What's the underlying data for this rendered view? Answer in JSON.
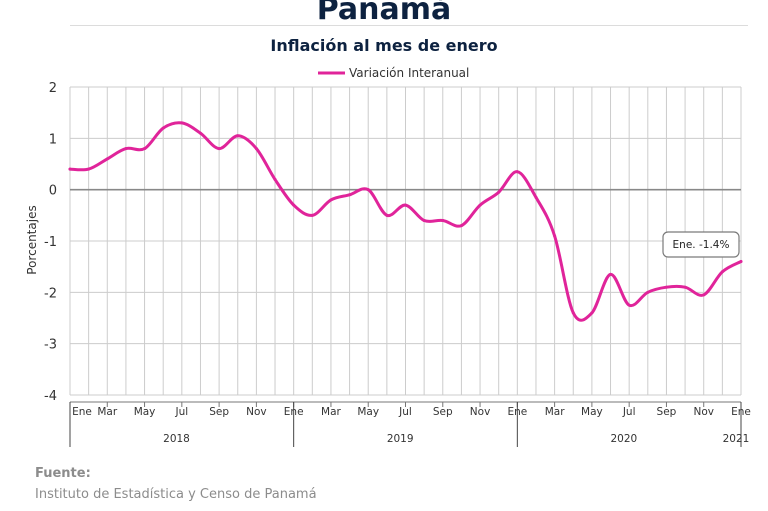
{
  "title": "Panamá",
  "subtitle": "Inflación al mes de enero",
  "source": {
    "heading": "Fuente:",
    "text": "Instituto de Estadística y Censo de Panamá"
  },
  "colors": {
    "series": "#e0249a",
    "grid": "#cccccc",
    "zero_line": "#888888",
    "text": "#333333",
    "title": "#0d2240"
  },
  "chart_data": {
    "type": "line",
    "title": "Inflación al mes de enero",
    "ylabel": "Porcentajes",
    "ylim": [
      -4,
      2
    ],
    "yticks": [
      2,
      1,
      0,
      -1,
      -2,
      -3,
      -4
    ],
    "grid": true,
    "legend_position": "top-center",
    "month_tick_labels": [
      "Ene",
      "Mar",
      "May",
      "Jul",
      "Sep",
      "Nov",
      "Ene",
      "Mar",
      "May",
      "Jul",
      "Sep",
      "Nov",
      "Ene",
      "Mar",
      "May",
      "Jul",
      "Sep",
      "Nov",
      "Ene"
    ],
    "year_labels": [
      "2018",
      "2019",
      "2020",
      "2021"
    ],
    "series": [
      {
        "name": "Variación Interanual",
        "x": [
          "2018-01",
          "2018-02",
          "2018-03",
          "2018-04",
          "2018-05",
          "2018-06",
          "2018-07",
          "2018-08",
          "2018-09",
          "2018-10",
          "2018-11",
          "2018-12",
          "2019-01",
          "2019-02",
          "2019-03",
          "2019-04",
          "2019-05",
          "2019-06",
          "2019-07",
          "2019-08",
          "2019-09",
          "2019-10",
          "2019-11",
          "2019-12",
          "2020-01",
          "2020-02",
          "2020-03",
          "2020-04",
          "2020-05",
          "2020-06",
          "2020-07",
          "2020-08",
          "2020-09",
          "2020-10",
          "2020-11",
          "2020-12",
          "2021-01"
        ],
        "values": [
          0.4,
          0.4,
          0.6,
          0.8,
          0.8,
          1.2,
          1.3,
          1.1,
          0.8,
          1.05,
          0.8,
          0.2,
          -0.3,
          -0.5,
          -0.2,
          -0.1,
          0.0,
          -0.5,
          -0.3,
          -0.6,
          -0.6,
          -0.7,
          -0.3,
          -0.05,
          0.35,
          -0.15,
          -0.9,
          -2.4,
          -2.4,
          -1.65,
          -2.25,
          -2.0,
          -1.9,
          -1.9,
          -2.05,
          -1.6,
          -1.4
        ]
      }
    ],
    "annotations": [
      {
        "text": "Ene. -1.4%",
        "x": "2021-01",
        "y": -1.4
      }
    ]
  }
}
